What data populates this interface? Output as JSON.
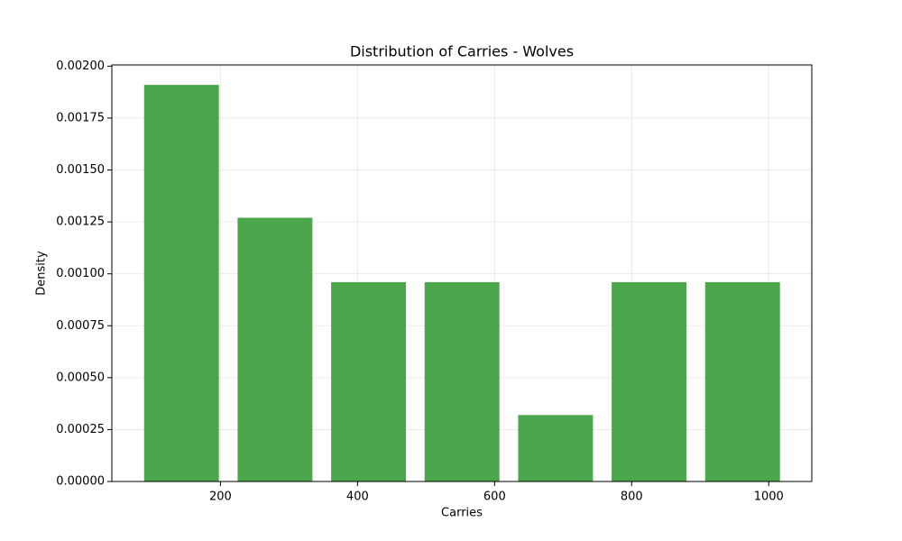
{
  "chart_data": {
    "type": "histogram",
    "title": "Distribution of Carries - Wolves",
    "x_label": "Carries",
    "y_label": "Density",
    "bins": [
      75,
      211.43,
      347.86,
      484.29,
      620.71,
      757.14,
      893.57,
      1030
    ],
    "values": [
      0.00191,
      0.00127,
      0.00096,
      0.00096,
      0.00032,
      0.00096,
      0.00096
    ],
    "color": "#4ca64c",
    "xlim": [
      41.6,
      1062.8
    ],
    "xticks": [
      200,
      400,
      600,
      800,
      1000
    ],
    "ylim": [
      0,
      0.002006
    ],
    "yticks": [
      {
        "value": 0,
        "label": "0.00000"
      },
      {
        "value": 0.00025,
        "label": "0.00025"
      },
      {
        "value": 0.0005,
        "label": "0.00050"
      },
      {
        "value": 0.00075,
        "label": "0.00075"
      },
      {
        "value": 0.001,
        "label": "0.00100"
      },
      {
        "value": 0.00125,
        "label": "0.00125"
      },
      {
        "value": 0.0015,
        "label": "0.00150"
      },
      {
        "value": 0.00175,
        "label": "0.00175"
      },
      {
        "value": 0.002,
        "label": "0.00200"
      }
    ],
    "grid": true
  }
}
